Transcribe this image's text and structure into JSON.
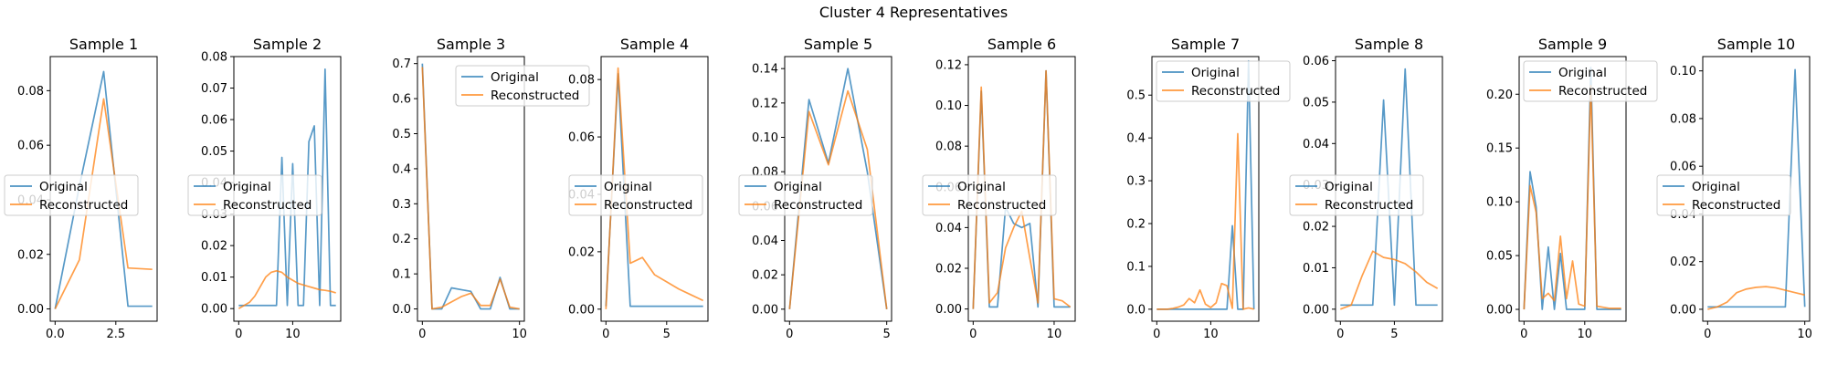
{
  "figure": {
    "title": "Cluster 4 Representatives"
  },
  "colors": {
    "original": "#1f77b4",
    "reconstructed": "#ff7f0e"
  },
  "chart_data": [
    {
      "type": "line",
      "title": "Sample 1",
      "xlim": [
        -0.2,
        4.2
      ],
      "ylim": [
        -0.0045,
        0.0925
      ],
      "xticks": [
        0.0,
        2.5
      ],
      "xtick_labels": [
        "0.0",
        "2.5"
      ],
      "yticks": [
        0.0,
        0.02,
        0.04,
        0.06,
        0.08
      ],
      "ytick_labels": [
        "0.00",
        "0.02",
        "0.04",
        "0.06",
        "0.08"
      ],
      "legend": {
        "placement": "center-left"
      },
      "series": [
        {
          "name": "Original",
          "x": [
            0,
            1,
            2,
            3,
            4
          ],
          "values": [
            0.0,
            0.045,
            0.087,
            0.001,
            0.001
          ]
        },
        {
          "name": "Reconstructed",
          "x": [
            0,
            1,
            2,
            3,
            4
          ],
          "values": [
            0.0,
            0.018,
            0.077,
            0.015,
            0.0145
          ]
        }
      ]
    },
    {
      "type": "line",
      "title": "Sample 2",
      "xlim": [
        -0.9,
        18.9
      ],
      "ylim": [
        -0.004,
        0.08
      ],
      "xticks": [
        0,
        10
      ],
      "xtick_labels": [
        "0",
        "10"
      ],
      "yticks": [
        0.0,
        0.01,
        0.02,
        0.03,
        0.04,
        0.05,
        0.06,
        0.07,
        0.08
      ],
      "ytick_labels": [
        "0.00",
        "0.01",
        "0.02",
        "0.03",
        "0.04",
        "0.05",
        "0.06",
        "0.07",
        "0.08"
      ],
      "legend": {
        "placement": "center-left"
      },
      "series": [
        {
          "name": "Original",
          "x": [
            0,
            1,
            2,
            3,
            4,
            5,
            6,
            7,
            8,
            9,
            10,
            11,
            12,
            13,
            14,
            15,
            16,
            17,
            18
          ],
          "values": [
            0.001,
            0.001,
            0.001,
            0.001,
            0.001,
            0.001,
            0.001,
            0.001,
            0.048,
            0.001,
            0.046,
            0.001,
            0.001,
            0.053,
            0.058,
            0.001,
            0.076,
            0.001,
            0.001
          ]
        },
        {
          "name": "Reconstructed",
          "x": [
            0,
            1,
            2,
            3,
            4,
            5,
            6,
            7,
            8,
            9,
            10,
            11,
            12,
            13,
            14,
            15,
            16,
            17,
            18
          ],
          "values": [
            0.0,
            0.001,
            0.002,
            0.004,
            0.007,
            0.01,
            0.0115,
            0.012,
            0.0115,
            0.01,
            0.009,
            0.008,
            0.0075,
            0.007,
            0.0065,
            0.006,
            0.0058,
            0.0055,
            0.005
          ]
        }
      ]
    },
    {
      "type": "line",
      "title": "Sample 3",
      "xlim": [
        -0.5,
        10.5
      ],
      "ylim": [
        -0.035,
        0.72
      ],
      "xticks": [
        0,
        10
      ],
      "xtick_labels": [
        "0",
        "10"
      ],
      "yticks": [
        0.0,
        0.1,
        0.2,
        0.3,
        0.4,
        0.5,
        0.6,
        0.7
      ],
      "ytick_labels": [
        "0.0",
        "0.1",
        "0.2",
        "0.3",
        "0.4",
        "0.5",
        "0.6",
        "0.7"
      ],
      "legend": {
        "placement": "upper-right"
      },
      "series": [
        {
          "name": "Original",
          "x": [
            0,
            1,
            2,
            3,
            4,
            5,
            6,
            7,
            8,
            9,
            10
          ],
          "values": [
            0.7,
            0.0,
            0.0,
            0.06,
            0.055,
            0.05,
            0.0,
            0.0,
            0.09,
            0.0,
            0.0
          ]
        },
        {
          "name": "Reconstructed",
          "x": [
            0,
            1,
            2,
            3,
            4,
            5,
            6,
            7,
            8,
            9,
            10
          ],
          "values": [
            0.69,
            0.0,
            0.005,
            0.02,
            0.035,
            0.045,
            0.01,
            0.01,
            0.085,
            0.005,
            0.0
          ]
        }
      ]
    },
    {
      "type": "line",
      "title": "Sample 4",
      "xlim": [
        -0.4,
        8.4
      ],
      "ylim": [
        -0.0042,
        0.088
      ],
      "xticks": [
        0,
        5
      ],
      "xtick_labels": [
        "0",
        "5"
      ],
      "yticks": [
        0.0,
        0.02,
        0.04,
        0.06,
        0.08
      ],
      "ytick_labels": [
        "0.00",
        "0.02",
        "0.04",
        "0.06",
        "0.08"
      ],
      "legend": {
        "placement": "center-right"
      },
      "series": [
        {
          "name": "Original",
          "x": [
            0,
            1,
            2,
            3,
            4,
            5,
            6,
            7,
            8
          ],
          "values": [
            0.001,
            0.082,
            0.001,
            0.001,
            0.001,
            0.001,
            0.001,
            0.001,
            0.001
          ]
        },
        {
          "name": "Reconstructed",
          "x": [
            0,
            1,
            2,
            3,
            4,
            5,
            6,
            7,
            8
          ],
          "values": [
            0.0,
            0.084,
            0.016,
            0.018,
            0.012,
            0.0095,
            0.007,
            0.005,
            0.003
          ]
        }
      ]
    },
    {
      "type": "line",
      "title": "Sample 5",
      "xlim": [
        -0.25,
        5.25
      ],
      "ylim": [
        -0.007,
        0.147
      ],
      "xticks": [
        0,
        5
      ],
      "xtick_labels": [
        "0",
        "5"
      ],
      "yticks": [
        0.0,
        0.02,
        0.04,
        0.06,
        0.08,
        0.1,
        0.12,
        0.14
      ],
      "ytick_labels": [
        "0.00",
        "0.02",
        "0.04",
        "0.06",
        "0.08",
        "0.10",
        "0.12",
        "0.14"
      ],
      "legend": {
        "placement": "center-left"
      },
      "series": [
        {
          "name": "Original",
          "x": [
            0,
            1,
            2,
            3,
            4,
            5
          ],
          "values": [
            0.0,
            0.122,
            0.085,
            0.14,
            0.08,
            0.0
          ]
        },
        {
          "name": "Reconstructed",
          "x": [
            0,
            1,
            2,
            3,
            4,
            5
          ],
          "values": [
            0.0,
            0.115,
            0.084,
            0.127,
            0.093,
            0.0
          ]
        }
      ]
    },
    {
      "type": "line",
      "title": "Sample 6",
      "xlim": [
        -0.6,
        12.6
      ],
      "ylim": [
        -0.006,
        0.124
      ],
      "xticks": [
        0,
        10
      ],
      "xtick_labels": [
        "0",
        "10"
      ],
      "yticks": [
        0.0,
        0.02,
        0.04,
        0.06,
        0.08,
        0.1,
        0.12
      ],
      "ytick_labels": [
        "0.00",
        "0.02",
        "0.04",
        "0.06",
        "0.08",
        "0.10",
        "0.12"
      ],
      "legend": {
        "placement": "center-left"
      },
      "series": [
        {
          "name": "Original",
          "x": [
            0,
            1,
            2,
            3,
            4,
            5,
            6,
            7,
            8,
            9,
            10,
            11,
            12
          ],
          "values": [
            0.0,
            0.107,
            0.001,
            0.001,
            0.05,
            0.042,
            0.04,
            0.042,
            0.001,
            0.117,
            0.001,
            0.001,
            0.001
          ]
        },
        {
          "name": "Reconstructed",
          "x": [
            0,
            1,
            2,
            3,
            4,
            5,
            6,
            7,
            8,
            9,
            10,
            11,
            12
          ],
          "values": [
            0.0,
            0.109,
            0.003,
            0.008,
            0.03,
            0.04,
            0.048,
            0.025,
            0.003,
            0.117,
            0.005,
            0.004,
            0.001
          ]
        }
      ]
    },
    {
      "type": "line",
      "title": "Sample 7",
      "xlim": [
        -0.9,
        18.9
      ],
      "ylim": [
        -0.028,
        0.59
      ],
      "xticks": [
        0,
        10
      ],
      "xtick_labels": [
        "0",
        "10"
      ],
      "yticks": [
        0.0,
        0.1,
        0.2,
        0.3,
        0.4,
        0.5
      ],
      "ytick_labels": [
        "0.0",
        "0.1",
        "0.2",
        "0.3",
        "0.4",
        "0.5"
      ],
      "legend": {
        "placement": "upper-left"
      },
      "series": [
        {
          "name": "Original",
          "x": [
            0,
            1,
            2,
            3,
            4,
            5,
            6,
            7,
            8,
            9,
            10,
            11,
            12,
            13,
            14,
            15,
            16,
            17,
            18
          ],
          "values": [
            0.0,
            0.0,
            0.0,
            0.0,
            0.0,
            0.0,
            0.0,
            0.0,
            0.0,
            0.0,
            0.0,
            0.0,
            0.0,
            0.0,
            0.195,
            0.0,
            0.0,
            0.58,
            0.0
          ]
        },
        {
          "name": "Reconstructed",
          "x": [
            0,
            1,
            2,
            3,
            4,
            5,
            6,
            7,
            8,
            9,
            10,
            11,
            12,
            13,
            14,
            15,
            16,
            17,
            18
          ],
          "values": [
            0.0,
            0.0,
            0.0,
            0.002,
            0.005,
            0.01,
            0.025,
            0.015,
            0.045,
            0.012,
            0.004,
            0.015,
            0.06,
            0.055,
            0.002,
            0.41,
            0.0,
            0.003,
            0.0
          ]
        }
      ]
    },
    {
      "type": "line",
      "title": "Sample 8",
      "xlim": [
        -0.45,
        9.45
      ],
      "ylim": [
        -0.0029,
        0.061
      ],
      "xticks": [
        0,
        5
      ],
      "xtick_labels": [
        "0",
        "5"
      ],
      "yticks": [
        0.0,
        0.01,
        0.02,
        0.03,
        0.04,
        0.05,
        0.06
      ],
      "ytick_labels": [
        "0.00",
        "0.01",
        "0.02",
        "0.03",
        "0.04",
        "0.05",
        "0.06"
      ],
      "legend": {
        "placement": "center-left"
      },
      "series": [
        {
          "name": "Original",
          "x": [
            0,
            1,
            2,
            3,
            4,
            5,
            6,
            7,
            8,
            9
          ],
          "values": [
            0.001,
            0.001,
            0.001,
            0.001,
            0.0505,
            0.001,
            0.058,
            0.001,
            0.001,
            0.001
          ]
        },
        {
          "name": "Reconstructed",
          "x": [
            0,
            1,
            2,
            3,
            4,
            5,
            6,
            7,
            8,
            9
          ],
          "values": [
            0.0,
            0.001,
            0.008,
            0.014,
            0.0125,
            0.012,
            0.011,
            0.009,
            0.0065,
            0.005
          ]
        }
      ]
    },
    {
      "type": "line",
      "title": "Sample 9",
      "xlim": [
        -0.8,
        16.8
      ],
      "ylim": [
        -0.011,
        0.235
      ],
      "xticks": [
        0,
        10
      ],
      "xtick_labels": [
        "0",
        "10"
      ],
      "yticks": [
        0.0,
        0.05,
        0.1,
        0.15,
        0.2
      ],
      "ytick_labels": [
        "0.00",
        "0.05",
        "0.10",
        "0.15",
        "0.20"
      ],
      "legend": {
        "placement": "upper-left"
      },
      "series": [
        {
          "name": "Original",
          "x": [
            0,
            1,
            2,
            3,
            4,
            5,
            6,
            7,
            8,
            9,
            10,
            11,
            12,
            13,
            14,
            15,
            16
          ],
          "values": [
            0.0,
            0.128,
            0.095,
            0.0,
            0.058,
            0.0,
            0.052,
            0.0,
            0.0,
            0.0,
            0.0,
            0.225,
            0.0,
            0.0,
            0.0,
            0.0,
            0.0
          ]
        },
        {
          "name": "Reconstructed",
          "x": [
            0,
            1,
            2,
            3,
            4,
            5,
            6,
            7,
            8,
            9,
            10,
            11,
            12,
            13,
            14,
            15,
            16
          ],
          "values": [
            0.0,
            0.115,
            0.09,
            0.01,
            0.015,
            0.008,
            0.068,
            0.01,
            0.045,
            0.005,
            0.003,
            0.208,
            0.003,
            0.002,
            0.001,
            0.001,
            0.001
          ]
        }
      ]
    },
    {
      "type": "line",
      "title": "Sample 10",
      "xlim": [
        -0.5,
        10.5
      ],
      "ylim": [
        -0.005,
        0.106
      ],
      "xticks": [
        0,
        10
      ],
      "xtick_labels": [
        "0",
        "10"
      ],
      "yticks": [
        0.0,
        0.02,
        0.04,
        0.06,
        0.08,
        0.1
      ],
      "ytick_labels": [
        "0.00",
        "0.02",
        "0.04",
        "0.06",
        "0.08",
        "0.10"
      ],
      "legend": {
        "placement": "center-left"
      },
      "series": [
        {
          "name": "Original",
          "x": [
            0,
            1,
            2,
            3,
            4,
            5,
            6,
            7,
            8,
            9,
            10
          ],
          "values": [
            0.001,
            0.001,
            0.001,
            0.001,
            0.001,
            0.001,
            0.001,
            0.001,
            0.001,
            0.1005,
            0.001
          ]
        },
        {
          "name": "Reconstructed",
          "x": [
            0,
            1,
            2,
            3,
            4,
            5,
            6,
            7,
            8,
            9,
            10
          ],
          "values": [
            0.0,
            0.001,
            0.003,
            0.007,
            0.0085,
            0.0092,
            0.0095,
            0.009,
            0.008,
            0.007,
            0.006
          ]
        }
      ]
    }
  ]
}
